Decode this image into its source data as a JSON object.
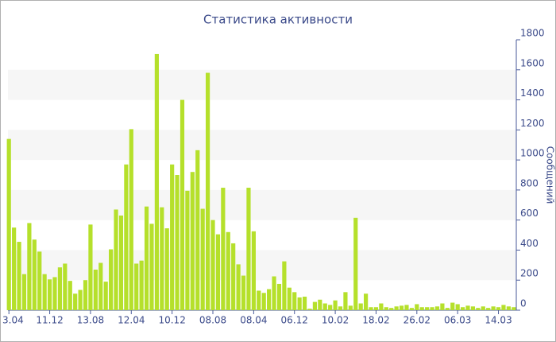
{
  "chart_data": {
    "type": "bar",
    "title": "Статистика активности",
    "y_label": "Сообщений",
    "categories": [
      "3.04",
      null,
      null,
      null,
      null,
      null,
      null,
      null,
      "11.12",
      null,
      null,
      null,
      null,
      null,
      null,
      null,
      "13.08",
      null,
      null,
      null,
      null,
      null,
      null,
      null,
      "12.04",
      null,
      null,
      null,
      null,
      null,
      null,
      null,
      "10.12",
      null,
      null,
      null,
      null,
      null,
      null,
      null,
      "08.08",
      null,
      null,
      null,
      null,
      null,
      null,
      null,
      "08.04",
      null,
      null,
      null,
      null,
      null,
      null,
      null,
      "06.12",
      null,
      null,
      null,
      null,
      null,
      null,
      null,
      "10.02",
      null,
      null,
      null,
      null,
      null,
      null,
      null,
      "18.02",
      null,
      null,
      null,
      null,
      null,
      null,
      null,
      "26.02",
      null,
      null,
      null,
      null,
      null,
      null,
      null,
      "06.03",
      null,
      null,
      null,
      null,
      null,
      null,
      null,
      "14.03",
      null,
      null,
      null
    ],
    "values": [
      1140,
      550,
      455,
      240,
      580,
      470,
      390,
      240,
      205,
      220,
      285,
      310,
      195,
      110,
      135,
      200,
      570,
      270,
      315,
      190,
      405,
      670,
      630,
      970,
      1205,
      310,
      330,
      690,
      575,
      1705,
      685,
      545,
      970,
      900,
      1400,
      795,
      920,
      1065,
      675,
      1580,
      600,
      505,
      815,
      520,
      445,
      305,
      230,
      815,
      525,
      130,
      115,
      140,
      225,
      175,
      325,
      150,
      120,
      85,
      90,
      10,
      55,
      70,
      45,
      35,
      65,
      25,
      120,
      30,
      615,
      45,
      110,
      20,
      20,
      45,
      20,
      15,
      25,
      30,
      35,
      15,
      40,
      20,
      20,
      20,
      25,
      45,
      15,
      50,
      40,
      20,
      30,
      25,
      15,
      25,
      15,
      25,
      20,
      35,
      25,
      20
    ],
    "color": "#b5e02b",
    "ylim": [
      0,
      1800
    ],
    "yticks": [
      0,
      200,
      400,
      600,
      800,
      1000,
      1200,
      1400,
      1600,
      1800
    ],
    "grid": "bands"
  }
}
